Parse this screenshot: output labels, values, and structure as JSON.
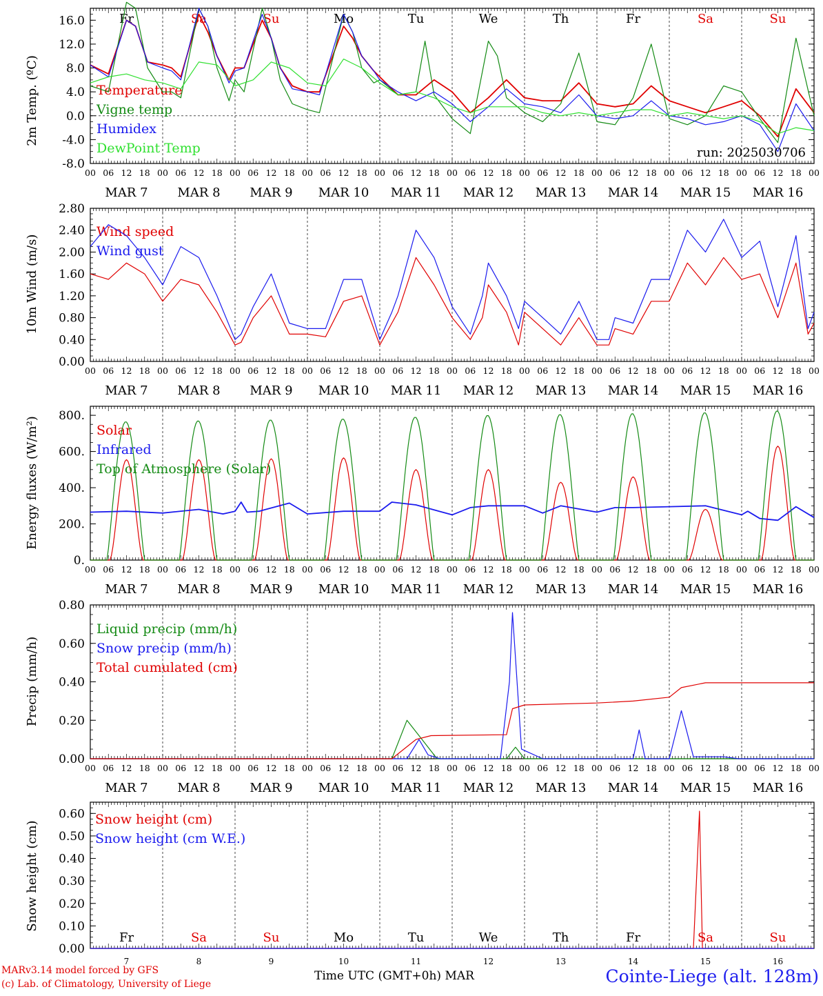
{
  "footer": {
    "model": "MARv3.14 model forced by GFS",
    "copyright": "(c) Lab. of Climatology, University of Liege",
    "xlabel": "Time UTC (GMT+0h) MAR",
    "station": "Cointe-Liege (alt. 128m)"
  },
  "colors": {
    "red": "#e00000",
    "green": "#138a13",
    "blue": "#1a1aee",
    "lime": "#30e030",
    "black": "#000000"
  },
  "chart_data": [
    {
      "type": "line",
      "id": "temperature",
      "ylabel": "2m Temp. (ºC)",
      "ylim": [
        -8,
        18
      ],
      "yticks": [
        "16.0",
        "12.0",
        "8.0",
        "4.0",
        "0.0",
        "-4.0",
        "-8.0"
      ],
      "ytick_values": [
        16,
        12,
        8,
        4,
        0,
        -4,
        -8
      ],
      "zero_line": true,
      "day_names": [
        "Fr",
        "Sa",
        "Su",
        "Mo",
        "Tu",
        "We",
        "Th",
        "Fr",
        "Sa",
        "Su"
      ],
      "day_name_colors": [
        "black",
        "red",
        "red",
        "black",
        "black",
        "black",
        "black",
        "black",
        "red",
        "red"
      ],
      "run_label": "run: 2025030706",
      "x_hour_ticks": [
        "00",
        "06",
        "12",
        "18"
      ],
      "x_dates": [
        "MAR 7",
        "MAR 8",
        "MAR 9",
        "MAR 10",
        "MAR 11",
        "MAR 12",
        "MAR 13",
        "MAR 14",
        "MAR 15",
        "MAR 16"
      ],
      "x_range_hours": [
        0,
        240
      ],
      "series": [
        {
          "name": "Temperature",
          "color": "red",
          "x": [
            0,
            6,
            12,
            15,
            19,
            24,
            27,
            30,
            36,
            39,
            42,
            46,
            48,
            51,
            57,
            60,
            63,
            67,
            72,
            76,
            84,
            87,
            90,
            94,
            96,
            102,
            108,
            114,
            120,
            126,
            132,
            138,
            144,
            150,
            156,
            162,
            168,
            174,
            180,
            186,
            192,
            198,
            204,
            210,
            216,
            222,
            228,
            234,
            240
          ],
          "y": [
            8.5,
            7,
            16,
            15,
            9,
            8.5,
            8,
            6.5,
            17,
            14,
            10,
            6,
            8,
            8,
            16,
            13,
            8,
            5,
            4,
            4,
            15,
            13,
            10,
            7.5,
            6.5,
            3.5,
            3.5,
            6,
            4,
            0.5,
            3,
            6,
            3,
            2.5,
            2.5,
            5.5,
            2,
            1.5,
            2,
            5,
            2.5,
            1.5,
            0.5,
            1.5,
            2.5,
            0,
            -3.5,
            4.5,
            0.5
          ]
        },
        {
          "name": "Vigne temp",
          "color": "green",
          "x": [
            0,
            6,
            12,
            15,
            19,
            24,
            27,
            30,
            36,
            39,
            42,
            46,
            48,
            51,
            57,
            60,
            63,
            67,
            72,
            76,
            84,
            87,
            90,
            94,
            96,
            102,
            108,
            111,
            114,
            120,
            126,
            132,
            135,
            138,
            144,
            150,
            156,
            162,
            168,
            174,
            180,
            186,
            192,
            198,
            204,
            210,
            216,
            222,
            228,
            234,
            240
          ],
          "y": [
            5,
            4,
            19,
            18,
            8,
            4,
            4,
            3,
            18,
            15,
            8,
            2.5,
            6,
            4,
            18,
            13,
            6,
            2,
            1,
            0.5,
            17,
            14,
            8,
            5.5,
            6,
            3.5,
            4,
            12.5,
            3.5,
            -0.5,
            -3,
            12.5,
            10,
            3,
            0.5,
            -1,
            2,
            10.5,
            -1,
            -1.5,
            3,
            12,
            -0.5,
            -1.5,
            0,
            5,
            4,
            -0.5,
            -4.5,
            13,
            0
          ]
        },
        {
          "name": "Humidex",
          "color": "blue",
          "x": [
            0,
            6,
            12,
            15,
            19,
            24,
            27,
            30,
            36,
            39,
            42,
            46,
            48,
            51,
            57,
            60,
            63,
            67,
            72,
            76,
            84,
            87,
            90,
            94,
            96,
            102,
            108,
            114,
            120,
            126,
            132,
            138,
            144,
            150,
            156,
            162,
            168,
            174,
            180,
            186,
            192,
            198,
            204,
            210,
            216,
            222,
            228,
            234,
            240
          ],
          "y": [
            8.5,
            6.5,
            16,
            15,
            9,
            8,
            7.5,
            6,
            18,
            15,
            10,
            5.5,
            7.5,
            8,
            17,
            13,
            8,
            4.5,
            4,
            3.5,
            17,
            14,
            10,
            7.5,
            6,
            4,
            2.5,
            4,
            2,
            -1,
            1.5,
            4.5,
            2,
            1.5,
            0.5,
            3.5,
            0,
            -0.5,
            0,
            2.5,
            0,
            -0.5,
            -1.5,
            -1,
            0,
            -1.5,
            -6,
            2,
            -2.5
          ]
        },
        {
          "name": "DewPoint Temp",
          "color": "lime",
          "x": [
            0,
            6,
            12,
            18,
            24,
            30,
            36,
            42,
            48,
            54,
            60,
            66,
            72,
            78,
            84,
            90,
            96,
            102,
            108,
            114,
            120,
            126,
            132,
            138,
            144,
            150,
            156,
            162,
            168,
            174,
            180,
            186,
            192,
            198,
            204,
            210,
            216,
            222,
            228,
            234,
            240
          ],
          "y": [
            5.5,
            6.5,
            7,
            6,
            5.5,
            4.5,
            9,
            8.5,
            5,
            6,
            9,
            8,
            5.5,
            5,
            9.5,
            8,
            5.5,
            3.5,
            4,
            3,
            1.5,
            0.5,
            1.5,
            1.5,
            1.5,
            0.5,
            0,
            0.5,
            0,
            0.5,
            1,
            1,
            0,
            0.5,
            0,
            -0.5,
            0,
            -1,
            -3,
            -2,
            -2.5
          ]
        }
      ]
    },
    {
      "type": "line",
      "id": "wind",
      "ylabel": "10m Wind (m/s)",
      "ylim": [
        0,
        2.8
      ],
      "yticks": [
        "2.80",
        "2.40",
        "2.00",
        "1.60",
        "1.20",
        "0.80",
        "0.40",
        "0.00"
      ],
      "ytick_values": [
        2.8,
        2.4,
        2.0,
        1.6,
        1.2,
        0.8,
        0.4,
        0.0
      ],
      "x_hour_ticks": [
        "00",
        "06",
        "12",
        "18"
      ],
      "x_dates": [
        "MAR 7",
        "MAR 8",
        "MAR 9",
        "MAR 10",
        "MAR 11",
        "MAR 12",
        "MAR 13",
        "MAR 14",
        "MAR 15",
        "MAR 16"
      ],
      "x_range_hours": [
        0,
        240
      ],
      "series": [
        {
          "name": "Wind speed",
          "color": "red",
          "x": [
            0,
            6,
            12,
            18,
            24,
            30,
            36,
            42,
            48,
            50,
            54,
            60,
            66,
            72,
            78,
            84,
            90,
            96,
            100,
            102,
            108,
            114,
            120,
            126,
            130,
            132,
            138,
            142,
            144,
            150,
            156,
            162,
            168,
            172,
            174,
            180,
            186,
            192,
            198,
            204,
            210,
            216,
            222,
            228,
            234,
            238,
            240
          ],
          "y": [
            1.6,
            1.5,
            1.8,
            1.6,
            1.1,
            1.5,
            1.4,
            0.9,
            0.3,
            0.35,
            0.8,
            1.2,
            0.5,
            0.5,
            0.45,
            1.1,
            1.2,
            0.3,
            0.7,
            0.9,
            1.9,
            1.4,
            0.8,
            0.4,
            0.8,
            1.4,
            0.9,
            0.3,
            0.9,
            0.6,
            0.3,
            0.8,
            0.3,
            0.3,
            0.6,
            0.5,
            1.1,
            1.1,
            1.8,
            1.4,
            1.9,
            1.5,
            1.6,
            0.8,
            1.8,
            0.5,
            0.7
          ]
        },
        {
          "name": "Wind gust",
          "color": "blue",
          "x": [
            0,
            6,
            12,
            18,
            24,
            30,
            36,
            42,
            48,
            50,
            54,
            60,
            66,
            72,
            78,
            84,
            90,
            96,
            100,
            102,
            108,
            114,
            120,
            126,
            130,
            132,
            138,
            142,
            144,
            150,
            156,
            162,
            168,
            172,
            174,
            180,
            186,
            192,
            198,
            204,
            210,
            216,
            222,
            228,
            234,
            238,
            240
          ],
          "y": [
            2.1,
            2.5,
            2.3,
            1.9,
            1.4,
            2.1,
            1.9,
            1.2,
            0.4,
            0.5,
            1.0,
            1.6,
            0.7,
            0.6,
            0.6,
            1.5,
            1.5,
            0.4,
            0.9,
            1.2,
            2.4,
            1.9,
            1.0,
            0.5,
            1.2,
            1.8,
            1.2,
            0.6,
            1.1,
            0.8,
            0.5,
            1.1,
            0.4,
            0.4,
            0.8,
            0.7,
            1.5,
            1.5,
            2.4,
            2.0,
            2.6,
            1.9,
            2.2,
            1.0,
            2.3,
            0.6,
            0.9
          ]
        }
      ]
    },
    {
      "type": "line",
      "id": "energy",
      "ylabel": "Energy fluxes (W/m²)",
      "ylim": [
        0,
        850
      ],
      "yticks": [
        "800.",
        "600.",
        "400.",
        "200.",
        "0."
      ],
      "ytick_values": [
        800,
        600,
        400,
        200,
        0
      ],
      "x_hour_ticks": [
        "00",
        "06",
        "12",
        "18"
      ],
      "x_dates": [
        "MAR 7",
        "MAR 8",
        "MAR 9",
        "MAR 10",
        "MAR 11",
        "MAR 12",
        "MAR 13",
        "MAR 14",
        "MAR 15",
        "MAR 16"
      ],
      "x_range_hours": [
        0,
        240
      ],
      "series": [
        {
          "name": "Solar",
          "color": "red",
          "daily_peaks": [
            555,
            555,
            560,
            565,
            500,
            500,
            430,
            460,
            280,
            630
          ],
          "shape": "diurnal"
        },
        {
          "name": "Infrared",
          "color": "blue",
          "x": [
            0,
            12,
            24,
            36,
            44,
            48,
            50,
            52,
            56,
            66,
            72,
            84,
            96,
            100,
            108,
            120,
            126,
            132,
            144,
            150,
            156,
            168,
            174,
            180,
            192,
            204,
            216,
            218,
            222,
            228,
            234,
            240
          ],
          "y": [
            265,
            270,
            260,
            280,
            255,
            270,
            320,
            265,
            270,
            315,
            255,
            270,
            270,
            320,
            305,
            250,
            290,
            300,
            300,
            260,
            300,
            265,
            290,
            290,
            295,
            300,
            250,
            270,
            230,
            220,
            295,
            235
          ]
        },
        {
          "name": "Top of Atmosphere (Solar)",
          "color": "green",
          "daily_peaks": [
            765,
            770,
            775,
            780,
            790,
            800,
            805,
            810,
            815,
            825
          ],
          "shape": "diurnal"
        }
      ]
    },
    {
      "type": "line",
      "id": "precip",
      "ylabel": "Precip (mm/h)",
      "ylim": [
        0,
        0.8
      ],
      "yticks": [
        "0.80",
        "0.60",
        "0.40",
        "0.20",
        "0.00"
      ],
      "ytick_values": [
        0.8,
        0.6,
        0.4,
        0.2,
        0.0
      ],
      "x_hour_ticks": [
        "00",
        "06",
        "12",
        "18"
      ],
      "x_dates": [
        "MAR 7",
        "MAR 8",
        "MAR 9",
        "MAR 10",
        "MAR 11",
        "MAR 12",
        "MAR 13",
        "MAR 14",
        "MAR 15",
        "MAR 16"
      ],
      "x_range_hours": [
        0,
        240
      ],
      "series": [
        {
          "name": "Liquid precip (mm/h)",
          "color": "green",
          "x": [
            0,
            100,
            105,
            110,
            115,
            120,
            138,
            141,
            144,
            240
          ],
          "y": [
            0,
            0,
            0.2,
            0.1,
            0,
            0,
            0,
            0.06,
            0,
            0
          ]
        },
        {
          "name": "Snow precip (mm/h)",
          "color": "blue",
          "x": [
            0,
            105,
            109,
            112,
            116,
            136,
            139,
            140,
            143,
            150,
            180,
            182,
            184,
            192,
            196,
            200,
            210,
            215,
            240
          ],
          "y": [
            0,
            0,
            0.1,
            0.02,
            0,
            0,
            0.4,
            0.76,
            0.05,
            0,
            0,
            0.15,
            0,
            0,
            0.25,
            0.01,
            0.01,
            0,
            0
          ]
        },
        {
          "name": "Total cumulated (cm)",
          "color": "red",
          "x": [
            0,
            100,
            108,
            113,
            138,
            140,
            144,
            168,
            180,
            192,
            196,
            204,
            240
          ],
          "y": [
            0,
            0,
            0.1,
            0.12,
            0.125,
            0.26,
            0.28,
            0.29,
            0.3,
            0.32,
            0.37,
            0.395,
            0.395
          ]
        }
      ]
    },
    {
      "type": "line",
      "id": "snow",
      "ylabel": "Snow height (cm)",
      "ylim": [
        0,
        0.65
      ],
      "yticks": [
        "0.60",
        "0.50",
        "0.40",
        "0.30",
        "0.20",
        "0.10",
        "0.00"
      ],
      "ytick_values": [
        0.6,
        0.5,
        0.4,
        0.3,
        0.2,
        0.1,
        0.0
      ],
      "day_names": [
        "Fr",
        "Sa",
        "Su",
        "Mo",
        "Tu",
        "We",
        "Th",
        "Fr",
        "Sa",
        "Su"
      ],
      "day_name_colors": [
        "black",
        "red",
        "red",
        "black",
        "black",
        "black",
        "black",
        "black",
        "red",
        "red"
      ],
      "x_day_numbers": [
        "7",
        "8",
        "9",
        "10",
        "11",
        "12",
        "13",
        "14",
        "15",
        "16"
      ],
      "x_range_hours": [
        0,
        240
      ],
      "series": [
        {
          "name": "Snow height (cm)",
          "color": "red",
          "x": [
            0,
            200,
            201,
            202,
            203,
            240
          ],
          "y": [
            0,
            0,
            0.3,
            0.61,
            0,
            0
          ]
        },
        {
          "name": "Snow height (cm W.E.)",
          "color": "blue",
          "x": [
            0,
            240
          ],
          "y": [
            0,
            0
          ]
        }
      ]
    }
  ]
}
